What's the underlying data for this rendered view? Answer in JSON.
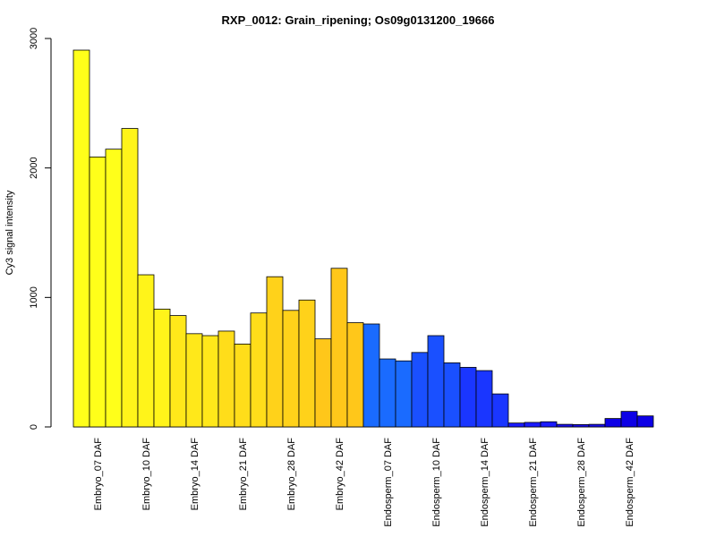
{
  "chart_data": {
    "type": "bar",
    "title": "RXP_0012: Grain_ripening; Os09g0131200_19666",
    "ylabel": "Cy3 signal intensity",
    "xlabel": "",
    "ylim": [
      0,
      3000
    ],
    "yticks": [
      0,
      1000,
      2000,
      3000
    ],
    "grid": false,
    "categories": [
      "Embryo_07 DAF",
      "Embryo_10 DAF",
      "Embryo_14 DAF",
      "Embryo_21 DAF",
      "Embryo_28 DAF",
      "Embryo_42 DAF",
      "Endosperm_07 DAF",
      "Endosperm_10 DAF",
      "Endosperm_14 DAF",
      "Endosperm_21 DAF",
      "Endosperm_28 DAF",
      "Endosperm_42 DAF"
    ],
    "colors": [
      "#FFFF1A",
      "#FFF41A",
      "#FFE81A",
      "#FFDD1A",
      "#FFD21A",
      "#FFC71A",
      "#1A6BFF",
      "#1A50FF",
      "#1A36FF",
      "#1A1AFF",
      "#1A0FEE",
      "#0D00E6"
    ],
    "values": [
      [
        2910,
        2085,
        2145
      ],
      [
        2305,
        1175,
        910
      ],
      [
        860,
        720,
        705
      ],
      [
        740,
        640,
        880
      ],
      [
        1160,
        900,
        980
      ],
      [
        680,
        1225,
        805
      ],
      [
        795,
        525,
        510
      ],
      [
        575,
        705,
        495
      ],
      [
        460,
        435,
        255
      ],
      [
        30,
        35,
        40
      ],
      [
        20,
        18,
        20
      ],
      [
        65,
        120,
        85
      ]
    ]
  }
}
